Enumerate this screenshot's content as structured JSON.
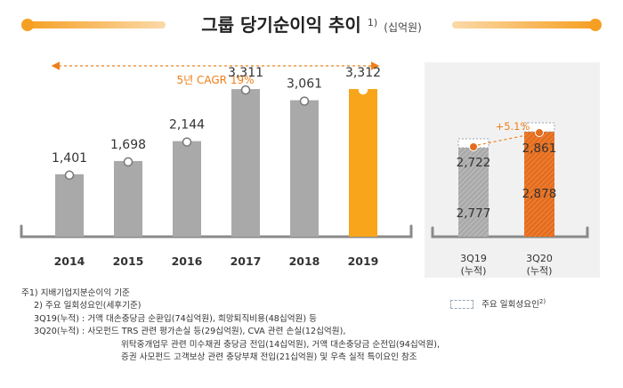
{
  "title": {
    "main": "그룹 당기순이익 추이",
    "sup": "1)",
    "unit": "(십억원)"
  },
  "colors": {
    "accent": "#f6a023",
    "bar_gray": "#a9a9a9",
    "bar_highlight": "#f8a51c",
    "bar_3q20": "#e46c1d",
    "cagr_text": "#ef7f1a",
    "axis": "#8a8a8a"
  },
  "chart_data": [
    {
      "type": "bar",
      "categories": [
        "2014",
        "2015",
        "2016",
        "2017",
        "2018",
        "2019"
      ],
      "values": [
        1401,
        1698,
        2144,
        3311,
        3061,
        3312
      ],
      "data_labels": [
        "1,401",
        "1,698",
        "2,144",
        "3,311",
        "3,061",
        "3,312"
      ],
      "highlight_index": 5,
      "annotation": "5년 CAGR 19%",
      "ylim": [
        0,
        3800
      ],
      "grid": false,
      "title": "",
      "xlabel": "",
      "ylabel": ""
    },
    {
      "type": "bar",
      "categories": [
        "3Q19\n(누적)",
        "3Q20\n(누적)"
      ],
      "category_lines": [
        [
          "3Q19",
          "(누적)"
        ],
        [
          "3Q20",
          "(누적)"
        ]
      ],
      "series": [
        {
          "values": [
            2722,
            2861
          ],
          "labels": [
            "2,722",
            "2,861"
          ]
        },
        {
          "values": [
            2777,
            2878
          ],
          "labels": [
            "2,777",
            "2,878"
          ]
        }
      ],
      "adjusted_labels": [
        "2,777",
        "2,878"
      ],
      "reported_labels": [
        "2,722",
        "2,861"
      ],
      "growth_annotation": "+5.1%",
      "legend": "주요 일회성요인",
      "legend_sup": "2)",
      "ylim": [
        0,
        3800
      ],
      "grid": false,
      "title": "",
      "xlabel": "",
      "ylabel": ""
    }
  ],
  "notes": {
    "note1": "주1) 지배기업지분순이익 기준",
    "note2": "2) 주요 일회성요인(세후기준)",
    "q19_label": "3Q19(누적) :",
    "q19_text": "거액 대손충당금 순환입(74십억원), 희망퇴직비용(48십억원) 등",
    "q20_label": "3Q20(누적) :",
    "q20_line1": "사모펀드 TRS 관련 평가손실 등(29십억원), CVA 관련 손실(12십억원),",
    "q20_line2": "위탁중개업무 관련 미수채권 충당금 전입(14십억원), 거액 대손충당금 순전입(94십억원),",
    "q20_line3": "증권 사모펀드 고객보상 관련 충당부채 전입(21십억원) 및 우측 실적 특이요인 참조"
  }
}
